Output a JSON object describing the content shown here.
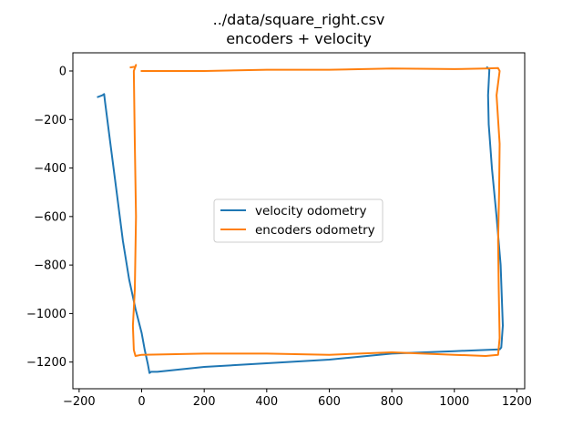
{
  "chart_data": {
    "type": "line",
    "title": "../data/square_right.csv",
    "subtitle": "encoders + velocity",
    "xlabel": "",
    "ylabel": "",
    "xlim": [
      -220,
      1225
    ],
    "ylim": [
      -1310,
      75
    ],
    "xticks": [
      -200,
      0,
      200,
      400,
      600,
      800,
      1000,
      1200
    ],
    "xtick_labels": [
      "−200",
      "0",
      "200",
      "400",
      "600",
      "800",
      "1000",
      "1200"
    ],
    "yticks": [
      0,
      -200,
      -400,
      -600,
      -800,
      -1000,
      -1200
    ],
    "ytick_labels": [
      "0",
      "−200",
      "−400",
      "−600",
      "−800",
      "−1000",
      "−1200"
    ],
    "grid": false,
    "legend_position": "center",
    "series": [
      {
        "name": "velocity odometry",
        "color": "#1f77b4",
        "x": [
          -140,
          -125,
          -120,
          -117,
          -100,
          -80,
          -60,
          -40,
          -20,
          0,
          10,
          20,
          25,
          30,
          50,
          200,
          400,
          600,
          800,
          1000,
          1145,
          1150,
          1155,
          1148,
          1135,
          1120,
          1110,
          1108,
          1112,
          1105
        ],
        "y": [
          -107,
          -100,
          -95,
          -130,
          -300,
          -500,
          -700,
          -860,
          -980,
          -1080,
          -1150,
          -1210,
          -1245,
          -1240,
          -1240,
          -1220,
          -1205,
          -1190,
          -1165,
          -1155,
          -1148,
          -1140,
          -1050,
          -800,
          -600,
          -400,
          -220,
          -100,
          5,
          15
        ]
      },
      {
        "name": "encoders odometry",
        "color": "#ff7f0e",
        "x": [
          -35,
          -20,
          -18,
          -25,
          -22,
          -18,
          -22,
          -28,
          -25,
          -20,
          0,
          200,
          400,
          600,
          800,
          1000,
          1100,
          1140,
          1145,
          1142,
          1140,
          1143,
          1145,
          1140,
          1135,
          1145,
          1140,
          1100,
          1000,
          800,
          600,
          400,
          200,
          20,
          0
        ],
        "y": [
          15,
          18,
          25,
          0,
          -300,
          -600,
          -900,
          -1050,
          -1150,
          -1175,
          -1170,
          -1165,
          -1165,
          -1170,
          -1160,
          -1170,
          -1175,
          -1170,
          -1100,
          -900,
          -700,
          -500,
          -300,
          -200,
          -100,
          0,
          12,
          10,
          8,
          10,
          5,
          5,
          0,
          0,
          0
        ]
      }
    ]
  }
}
